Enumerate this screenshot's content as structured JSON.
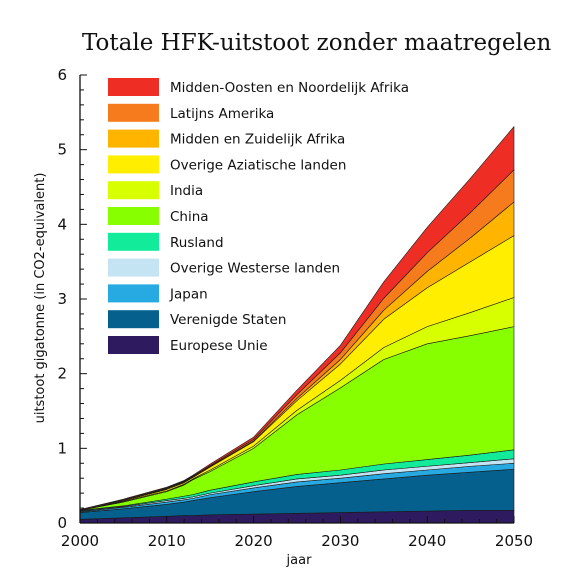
{
  "chart_data": {
    "type": "area",
    "title": "Totale HFK-uitstoot zonder maatregelen",
    "xlabel": "jaar",
    "ylabel": "uitstoot gigatonne (in CO2-equivalent)",
    "xlim": [
      2000,
      2050
    ],
    "ylim": [
      0,
      6
    ],
    "x_ticks": [
      "2000",
      "2010",
      "2020",
      "2030",
      "2040",
      "2050"
    ],
    "y_ticks": [
      "0",
      "1",
      "2",
      "3",
      "4",
      "5",
      "6"
    ],
    "stacked": true,
    "legend_placement": "top-left",
    "x": [
      2000,
      2005,
      2010,
      2012,
      2013,
      2015,
      2020,
      2025,
      2030,
      2035,
      2040,
      2045,
      2050
    ],
    "series": [
      {
        "name": "Europese Unie",
        "color": "#2e1a5e",
        "values": [
          0.05,
          0.07,
          0.09,
          0.1,
          0.1,
          0.11,
          0.12,
          0.13,
          0.14,
          0.15,
          0.16,
          0.17,
          0.17
        ]
      },
      {
        "name": "Verenigde Staten",
        "color": "#05608d",
        "values": [
          0.09,
          0.12,
          0.16,
          0.18,
          0.2,
          0.23,
          0.3,
          0.36,
          0.4,
          0.44,
          0.48,
          0.51,
          0.55
        ]
      },
      {
        "name": "Japan",
        "color": "#27a9e1",
        "values": [
          0.01,
          0.02,
          0.03,
          0.03,
          0.03,
          0.04,
          0.05,
          0.06,
          0.06,
          0.07,
          0.07,
          0.08,
          0.08
        ]
      },
      {
        "name": "Overige Westerse landen",
        "color": "#c4e4f4",
        "values": [
          0.01,
          0.01,
          0.02,
          0.02,
          0.02,
          0.02,
          0.03,
          0.04,
          0.04,
          0.05,
          0.05,
          0.05,
          0.06
        ]
      },
      {
        "name": "Rusland",
        "color": "#12ec9a",
        "values": [
          0.01,
          0.01,
          0.02,
          0.03,
          0.03,
          0.04,
          0.05,
          0.06,
          0.07,
          0.08,
          0.09,
          0.1,
          0.12
        ]
      },
      {
        "name": "China",
        "color": "#88ff00",
        "values": [
          0.0,
          0.05,
          0.1,
          0.15,
          0.2,
          0.25,
          0.45,
          0.8,
          1.1,
          1.4,
          1.55,
          1.6,
          1.65
        ]
      },
      {
        "name": "India",
        "color": "#d8ff00",
        "values": [
          0.0,
          0.01,
          0.01,
          0.01,
          0.01,
          0.02,
          0.03,
          0.06,
          0.1,
          0.16,
          0.23,
          0.31,
          0.39
        ]
      },
      {
        "name": "Overige Aziatische landen",
        "color": "#ffee00",
        "values": [
          0.0,
          0.01,
          0.02,
          0.02,
          0.02,
          0.04,
          0.06,
          0.13,
          0.22,
          0.38,
          0.52,
          0.68,
          0.83
        ]
      },
      {
        "name": "Midden en Zuidelijk Afrika",
        "color": "#ffb400",
        "values": [
          0.0,
          0.0,
          0.01,
          0.01,
          0.01,
          0.01,
          0.01,
          0.03,
          0.06,
          0.12,
          0.22,
          0.32,
          0.45
        ]
      },
      {
        "name": "Latijns Amerika",
        "color": "#f57b1d",
        "values": [
          0.01,
          0.01,
          0.01,
          0.01,
          0.01,
          0.01,
          0.02,
          0.05,
          0.09,
          0.16,
          0.25,
          0.34,
          0.43
        ]
      },
      {
        "name": "Midden-Oosten en Noordelijk Afrika",
        "color": "#ee2e24",
        "values": [
          0.0,
          0.01,
          0.01,
          0.01,
          0.01,
          0.02,
          0.03,
          0.06,
          0.1,
          0.22,
          0.34,
          0.46,
          0.58
        ]
      }
    ]
  }
}
